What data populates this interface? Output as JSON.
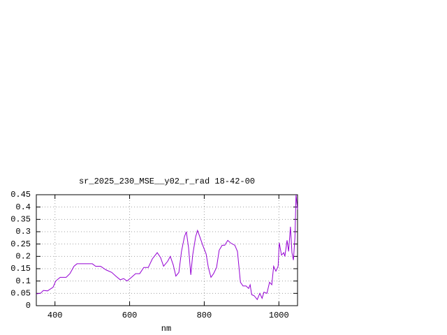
{
  "chart_data": {
    "type": "line",
    "title": "sr_2025_230_MSE__y02_r_rad 18-42-00",
    "x_label": "nm",
    "xlim": [
      350,
      1050
    ],
    "xticks": [
      400,
      600,
      800,
      1000
    ],
    "ylim": [
      0,
      0.45
    ],
    "yticks": [
      0,
      0.05,
      0.1,
      0.15,
      0.2,
      0.25,
      0.3,
      0.35,
      0.4,
      0.45
    ],
    "grid": true,
    "color": "#9400d3",
    "x": [
      350,
      361,
      369,
      380,
      395,
      402,
      414,
      430,
      440,
      451,
      459,
      481,
      492,
      500,
      509,
      522,
      537,
      552,
      563,
      575,
      584,
      593,
      605,
      616,
      627,
      638,
      650,
      661,
      674,
      683,
      691,
      702,
      709,
      717,
      724,
      732,
      739,
      747,
      752,
      758,
      764,
      769,
      777,
      782,
      788,
      796,
      805,
      811,
      818,
      825,
      833,
      840,
      848,
      855,
      863,
      870,
      882,
      889,
      897,
      904,
      912,
      919,
      923,
      927,
      934,
      942,
      949,
      955,
      960,
      968,
      975,
      981,
      986,
      992,
      998,
      1001,
      1007,
      1013,
      1016,
      1022,
      1026,
      1031,
      1035,
      1039,
      1043,
      1046,
      1050
    ],
    "values": [
      0.048,
      0.05,
      0.062,
      0.06,
      0.075,
      0.1,
      0.115,
      0.115,
      0.13,
      0.16,
      0.17,
      0.17,
      0.17,
      0.17,
      0.16,
      0.16,
      0.145,
      0.135,
      0.12,
      0.105,
      0.11,
      0.1,
      0.115,
      0.13,
      0.13,
      0.155,
      0.155,
      0.19,
      0.215,
      0.195,
      0.16,
      0.18,
      0.2,
      0.165,
      0.12,
      0.135,
      0.22,
      0.28,
      0.3,
      0.235,
      0.125,
      0.205,
      0.28,
      0.305,
      0.28,
      0.245,
      0.21,
      0.155,
      0.115,
      0.13,
      0.155,
      0.225,
      0.245,
      0.245,
      0.265,
      0.255,
      0.245,
      0.22,
      0.095,
      0.08,
      0.08,
      0.07,
      0.085,
      0.045,
      0.04,
      0.025,
      0.05,
      0.03,
      0.055,
      0.05,
      0.095,
      0.085,
      0.16,
      0.14,
      0.16,
      0.255,
      0.205,
      0.215,
      0.2,
      0.265,
      0.22,
      0.32,
      0.215,
      0.185,
      0.275,
      0.45,
      0.39
    ]
  }
}
